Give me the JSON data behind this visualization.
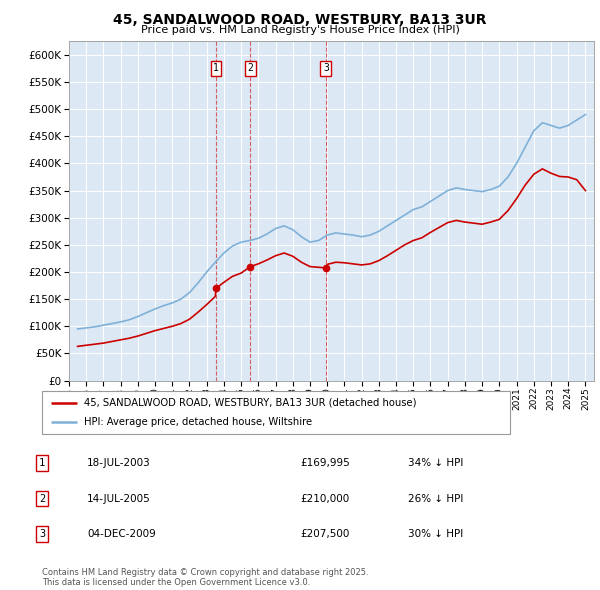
{
  "title": "45, SANDALWOOD ROAD, WESTBURY, BA13 3UR",
  "subtitle": "Price paid vs. HM Land Registry's House Price Index (HPI)",
  "ylim": [
    0,
    625000
  ],
  "yticks": [
    0,
    50000,
    100000,
    150000,
    200000,
    250000,
    300000,
    350000,
    400000,
    450000,
    500000,
    550000,
    600000
  ],
  "background_color": "#ffffff",
  "plot_bg_color": "#dce9f5",
  "grid_color": "#ffffff",
  "legend_entries": [
    "45, SANDALWOOD ROAD, WESTBURY, BA13 3UR (detached house)",
    "HPI: Average price, detached house, Wiltshire"
  ],
  "legend_colors": [
    "#cc0000",
    "#7fb0d8"
  ],
  "transactions": [
    {
      "id": 1,
      "date": "18-JUL-2003",
      "price": 169995,
      "pct": "34% ↓ HPI",
      "x": 2003.54
    },
    {
      "id": 2,
      "date": "14-JUL-2005",
      "price": 210000,
      "pct": "26% ↓ HPI",
      "x": 2005.54
    },
    {
      "id": 3,
      "date": "04-DEC-2009",
      "price": 207500,
      "pct": "30% ↓ HPI",
      "x": 2009.92
    }
  ],
  "footer": "Contains HM Land Registry data © Crown copyright and database right 2025.\nThis data is licensed under the Open Government Licence v3.0.",
  "hpi_x": [
    1995.5,
    1996.0,
    1996.5,
    1997.0,
    1997.5,
    1998.0,
    1998.5,
    1999.0,
    1999.5,
    2000.0,
    2000.5,
    2001.0,
    2001.5,
    2002.0,
    2002.5,
    2003.0,
    2003.5,
    2004.0,
    2004.5,
    2005.0,
    2005.5,
    2006.0,
    2006.5,
    2007.0,
    2007.5,
    2008.0,
    2008.5,
    2009.0,
    2009.5,
    2010.0,
    2010.5,
    2011.0,
    2011.5,
    2012.0,
    2012.5,
    2013.0,
    2013.5,
    2014.0,
    2014.5,
    2015.0,
    2015.5,
    2016.0,
    2016.5,
    2017.0,
    2017.5,
    2018.0,
    2018.5,
    2019.0,
    2019.5,
    2020.0,
    2020.5,
    2021.0,
    2021.5,
    2022.0,
    2022.5,
    2023.0,
    2023.5,
    2024.0,
    2024.5,
    2025.0
  ],
  "hpi_y": [
    95000,
    97000,
    99000,
    102000,
    105000,
    108000,
    112000,
    118000,
    125000,
    132000,
    138000,
    143000,
    150000,
    162000,
    180000,
    200000,
    218000,
    235000,
    248000,
    255000,
    258000,
    262000,
    270000,
    280000,
    285000,
    278000,
    265000,
    255000,
    258000,
    268000,
    272000,
    270000,
    268000,
    265000,
    268000,
    275000,
    285000,
    295000,
    305000,
    315000,
    320000,
    330000,
    340000,
    350000,
    355000,
    352000,
    350000,
    348000,
    352000,
    358000,
    375000,
    400000,
    430000,
    460000,
    475000,
    470000,
    465000,
    470000,
    480000,
    490000
  ],
  "red_x": [
    1995.5,
    1996.0,
    1996.5,
    1997.0,
    1997.5,
    1998.0,
    1998.5,
    1999.0,
    1999.5,
    2000.0,
    2000.5,
    2001.0,
    2001.5,
    2002.0,
    2002.5,
    2003.0,
    2003.5,
    2003.54,
    2004.0,
    2004.5,
    2005.0,
    2005.54,
    2006.0,
    2006.5,
    2007.0,
    2007.5,
    2008.0,
    2008.5,
    2009.0,
    2009.92,
    2010.0,
    2010.5,
    2011.0,
    2011.5,
    2012.0,
    2012.5,
    2013.0,
    2013.5,
    2014.0,
    2014.5,
    2015.0,
    2015.5,
    2016.0,
    2016.5,
    2017.0,
    2017.5,
    2018.0,
    2018.5,
    2019.0,
    2019.5,
    2020.0,
    2020.5,
    2021.0,
    2021.5,
    2022.0,
    2022.5,
    2023.0,
    2023.5,
    2024.0,
    2024.5,
    2025.0
  ],
  "red_y": [
    63000,
    65000,
    67000,
    69000,
    72000,
    75000,
    78000,
    82000,
    87000,
    92000,
    96000,
    100000,
    105000,
    113000,
    126000,
    140000,
    155000,
    169995,
    181000,
    192000,
    198000,
    210000,
    215000,
    222000,
    230000,
    235000,
    229000,
    218000,
    210000,
    207500,
    214000,
    218000,
    217000,
    215000,
    213000,
    215000,
    221000,
    230000,
    240000,
    250000,
    258000,
    263000,
    273000,
    282000,
    291000,
    295000,
    292000,
    290000,
    288000,
    292000,
    297000,
    313000,
    335000,
    360000,
    380000,
    390000,
    382000,
    376000,
    375000,
    370000,
    350000
  ],
  "xmin": 1995.0,
  "xmax": 2025.5
}
